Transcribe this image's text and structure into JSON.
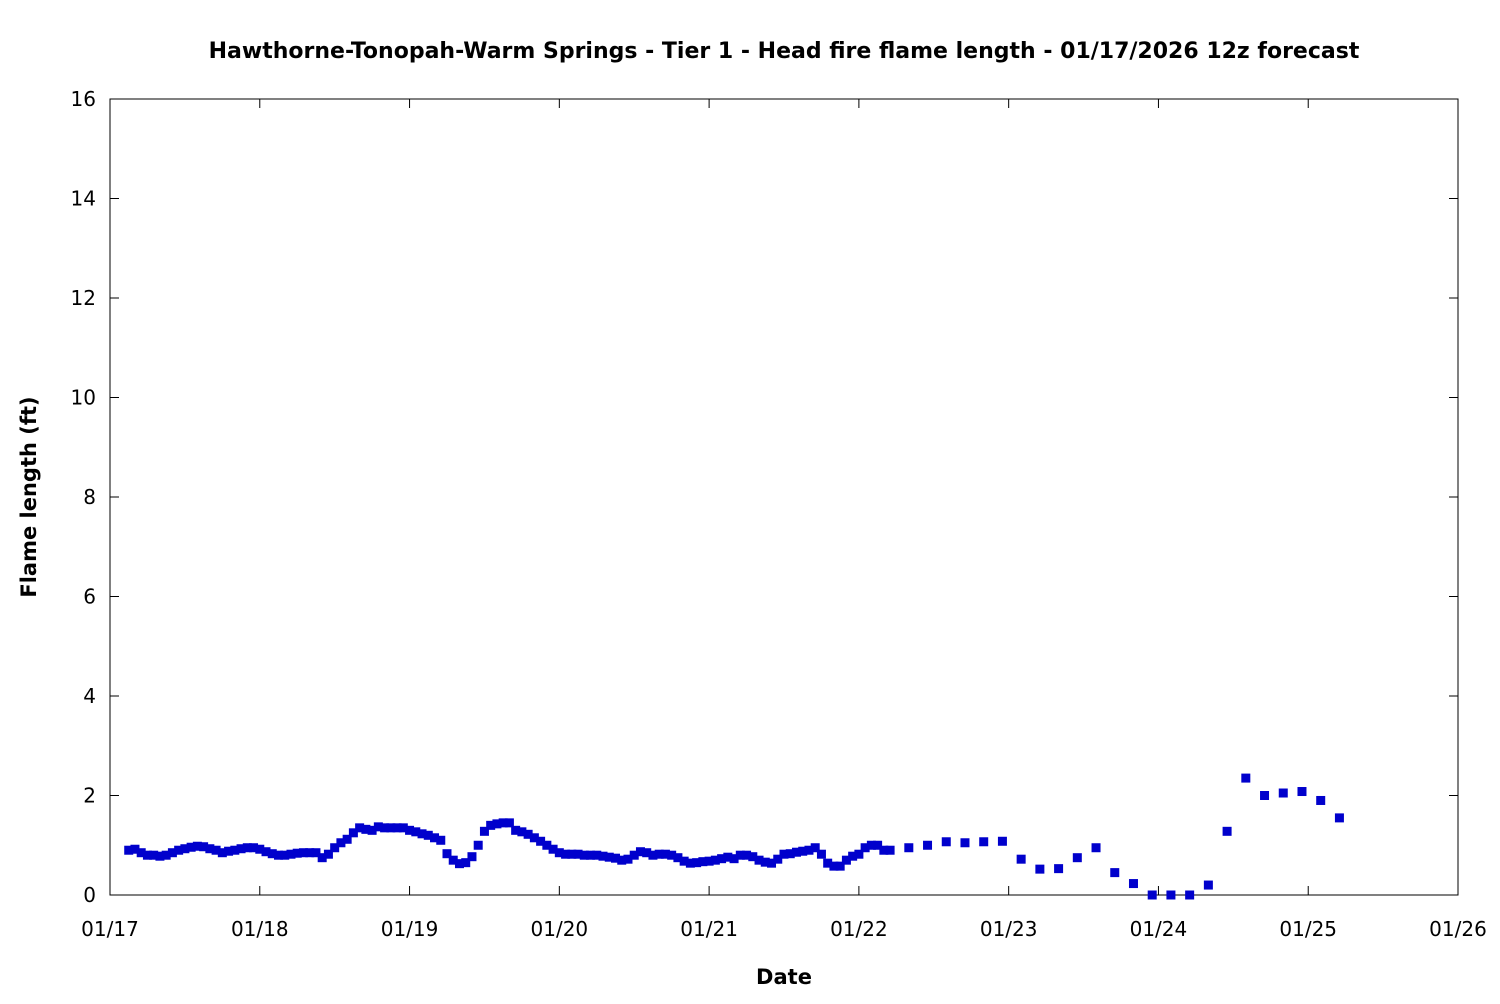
{
  "chart_data": {
    "type": "scatter",
    "title": "Hawthorne-Tonopah-Warm Springs - Tier 1 - Head fire flame length - 01/17/2026 12z forecast",
    "xlabel": "Date",
    "ylabel": "Flame length (ft)",
    "xlim": [
      "2026-01-17 00:00",
      "2026-01-26 00:00"
    ],
    "ylim": [
      0,
      16
    ],
    "x_ticks": [
      "01/17",
      "01/18",
      "01/19",
      "01/20",
      "01/21",
      "01/22",
      "01/23",
      "01/24",
      "01/25",
      "01/26"
    ],
    "y_ticks": [
      "0",
      "2",
      "4",
      "6",
      "8",
      "10",
      "12",
      "14",
      "16"
    ],
    "grid": false,
    "marker": "square",
    "color": "#0000cc",
    "points": [
      [
        "2026-01-17 03:00",
        0.9
      ],
      [
        "2026-01-17 04:00",
        0.92
      ],
      [
        "2026-01-17 05:00",
        0.85
      ],
      [
        "2026-01-17 06:00",
        0.8
      ],
      [
        "2026-01-17 07:00",
        0.8
      ],
      [
        "2026-01-17 08:00",
        0.78
      ],
      [
        "2026-01-17 09:00",
        0.8
      ],
      [
        "2026-01-17 10:00",
        0.85
      ],
      [
        "2026-01-17 11:00",
        0.9
      ],
      [
        "2026-01-17 12:00",
        0.93
      ],
      [
        "2026-01-17 13:00",
        0.96
      ],
      [
        "2026-01-17 14:00",
        0.98
      ],
      [
        "2026-01-17 15:00",
        0.97
      ],
      [
        "2026-01-17 16:00",
        0.93
      ],
      [
        "2026-01-17 17:00",
        0.9
      ],
      [
        "2026-01-17 18:00",
        0.85
      ],
      [
        "2026-01-17 19:00",
        0.88
      ],
      [
        "2026-01-17 20:00",
        0.9
      ],
      [
        "2026-01-17 21:00",
        0.93
      ],
      [
        "2026-01-17 22:00",
        0.95
      ],
      [
        "2026-01-17 23:00",
        0.95
      ],
      [
        "2026-01-18 00:00",
        0.92
      ],
      [
        "2026-01-18 01:00",
        0.87
      ],
      [
        "2026-01-18 02:00",
        0.83
      ],
      [
        "2026-01-18 03:00",
        0.8
      ],
      [
        "2026-01-18 04:00",
        0.8
      ],
      [
        "2026-01-18 05:00",
        0.82
      ],
      [
        "2026-01-18 06:00",
        0.84
      ],
      [
        "2026-01-18 07:00",
        0.85
      ],
      [
        "2026-01-18 08:00",
        0.85
      ],
      [
        "2026-01-18 09:00",
        0.85
      ],
      [
        "2026-01-18 10:00",
        0.75
      ],
      [
        "2026-01-18 11:00",
        0.82
      ],
      [
        "2026-01-18 12:00",
        0.95
      ],
      [
        "2026-01-18 13:00",
        1.05
      ],
      [
        "2026-01-18 14:00",
        1.12
      ],
      [
        "2026-01-18 15:00",
        1.25
      ],
      [
        "2026-01-18 16:00",
        1.35
      ],
      [
        "2026-01-18 17:00",
        1.32
      ],
      [
        "2026-01-18 18:00",
        1.3
      ],
      [
        "2026-01-18 19:00",
        1.37
      ],
      [
        "2026-01-18 20:00",
        1.35
      ],
      [
        "2026-01-18 21:00",
        1.35
      ],
      [
        "2026-01-18 22:00",
        1.35
      ],
      [
        "2026-01-18 23:00",
        1.35
      ],
      [
        "2026-01-19 00:00",
        1.3
      ],
      [
        "2026-01-19 01:00",
        1.27
      ],
      [
        "2026-01-19 02:00",
        1.23
      ],
      [
        "2026-01-19 03:00",
        1.2
      ],
      [
        "2026-01-19 04:00",
        1.15
      ],
      [
        "2026-01-19 05:00",
        1.1
      ],
      [
        "2026-01-19 06:00",
        0.83
      ],
      [
        "2026-01-19 07:00",
        0.7
      ],
      [
        "2026-01-19 08:00",
        0.63
      ],
      [
        "2026-01-19 09:00",
        0.65
      ],
      [
        "2026-01-19 10:00",
        0.77
      ],
      [
        "2026-01-19 11:00",
        1.0
      ],
      [
        "2026-01-19 12:00",
        1.28
      ],
      [
        "2026-01-19 13:00",
        1.4
      ],
      [
        "2026-01-19 14:00",
        1.43
      ],
      [
        "2026-01-19 15:00",
        1.45
      ],
      [
        "2026-01-19 16:00",
        1.45
      ],
      [
        "2026-01-19 17:00",
        1.3
      ],
      [
        "2026-01-19 18:00",
        1.27
      ],
      [
        "2026-01-19 19:00",
        1.22
      ],
      [
        "2026-01-19 20:00",
        1.15
      ],
      [
        "2026-01-19 21:00",
        1.08
      ],
      [
        "2026-01-19 22:00",
        1.0
      ],
      [
        "2026-01-19 23:00",
        0.92
      ],
      [
        "2026-01-20 00:00",
        0.85
      ],
      [
        "2026-01-20 01:00",
        0.82
      ],
      [
        "2026-01-20 02:00",
        0.82
      ],
      [
        "2026-01-20 03:00",
        0.82
      ],
      [
        "2026-01-20 04:00",
        0.8
      ],
      [
        "2026-01-20 05:00",
        0.8
      ],
      [
        "2026-01-20 06:00",
        0.8
      ],
      [
        "2026-01-20 07:00",
        0.78
      ],
      [
        "2026-01-20 08:00",
        0.76
      ],
      [
        "2026-01-20 09:00",
        0.74
      ],
      [
        "2026-01-20 10:00",
        0.7
      ],
      [
        "2026-01-20 11:00",
        0.72
      ],
      [
        "2026-01-20 12:00",
        0.8
      ],
      [
        "2026-01-20 13:00",
        0.87
      ],
      [
        "2026-01-20 14:00",
        0.85
      ],
      [
        "2026-01-20 15:00",
        0.8
      ],
      [
        "2026-01-20 16:00",
        0.82
      ],
      [
        "2026-01-20 17:00",
        0.82
      ],
      [
        "2026-01-20 18:00",
        0.8
      ],
      [
        "2026-01-20 19:00",
        0.75
      ],
      [
        "2026-01-20 20:00",
        0.68
      ],
      [
        "2026-01-20 21:00",
        0.64
      ],
      [
        "2026-01-20 22:00",
        0.65
      ],
      [
        "2026-01-20 23:00",
        0.67
      ],
      [
        "2026-01-21 00:00",
        0.68
      ],
      [
        "2026-01-21 01:00",
        0.7
      ],
      [
        "2026-01-21 02:00",
        0.73
      ],
      [
        "2026-01-21 03:00",
        0.76
      ],
      [
        "2026-01-21 04:00",
        0.73
      ],
      [
        "2026-01-21 05:00",
        0.8
      ],
      [
        "2026-01-21 06:00",
        0.8
      ],
      [
        "2026-01-21 07:00",
        0.77
      ],
      [
        "2026-01-21 08:00",
        0.7
      ],
      [
        "2026-01-21 09:00",
        0.66
      ],
      [
        "2026-01-21 10:00",
        0.64
      ],
      [
        "2026-01-21 11:00",
        0.72
      ],
      [
        "2026-01-21 12:00",
        0.82
      ],
      [
        "2026-01-21 13:00",
        0.83
      ],
      [
        "2026-01-21 14:00",
        0.86
      ],
      [
        "2026-01-21 15:00",
        0.88
      ],
      [
        "2026-01-21 16:00",
        0.9
      ],
      [
        "2026-01-21 17:00",
        0.95
      ],
      [
        "2026-01-21 18:00",
        0.82
      ],
      [
        "2026-01-21 19:00",
        0.64
      ],
      [
        "2026-01-21 20:00",
        0.58
      ],
      [
        "2026-01-21 21:00",
        0.58
      ],
      [
        "2026-01-21 22:00",
        0.7
      ],
      [
        "2026-01-21 23:00",
        0.78
      ],
      [
        "2026-01-22 00:00",
        0.82
      ],
      [
        "2026-01-22 01:00",
        0.95
      ],
      [
        "2026-01-22 02:00",
        1.0
      ],
      [
        "2026-01-22 03:00",
        1.0
      ],
      [
        "2026-01-22 04:00",
        0.9
      ],
      [
        "2026-01-22 05:00",
        0.9
      ],
      [
        "2026-01-22 08:00",
        0.95
      ],
      [
        "2026-01-22 11:00",
        1.0
      ],
      [
        "2026-01-22 14:00",
        1.07
      ],
      [
        "2026-01-22 17:00",
        1.05
      ],
      [
        "2026-01-22 20:00",
        1.07
      ],
      [
        "2026-01-22 23:00",
        1.08
      ],
      [
        "2026-01-23 02:00",
        0.72
      ],
      [
        "2026-01-23 05:00",
        0.52
      ],
      [
        "2026-01-23 08:00",
        0.53
      ],
      [
        "2026-01-23 11:00",
        0.75
      ],
      [
        "2026-01-23 14:00",
        0.95
      ],
      [
        "2026-01-23 17:00",
        0.45
      ],
      [
        "2026-01-23 20:00",
        0.23
      ],
      [
        "2026-01-23 23:00",
        0.0
      ],
      [
        "2026-01-24 02:00",
        0.0
      ],
      [
        "2026-01-24 05:00",
        0.0
      ],
      [
        "2026-01-24 08:00",
        0.2
      ],
      [
        "2026-01-24 11:00",
        1.28
      ],
      [
        "2026-01-24 14:00",
        2.35
      ],
      [
        "2026-01-24 17:00",
        2.0
      ],
      [
        "2026-01-24 20:00",
        2.05
      ],
      [
        "2026-01-24 23:00",
        2.08
      ],
      [
        "2026-01-25 02:00",
        1.9
      ],
      [
        "2026-01-25 05:00",
        1.55
      ]
    ]
  }
}
